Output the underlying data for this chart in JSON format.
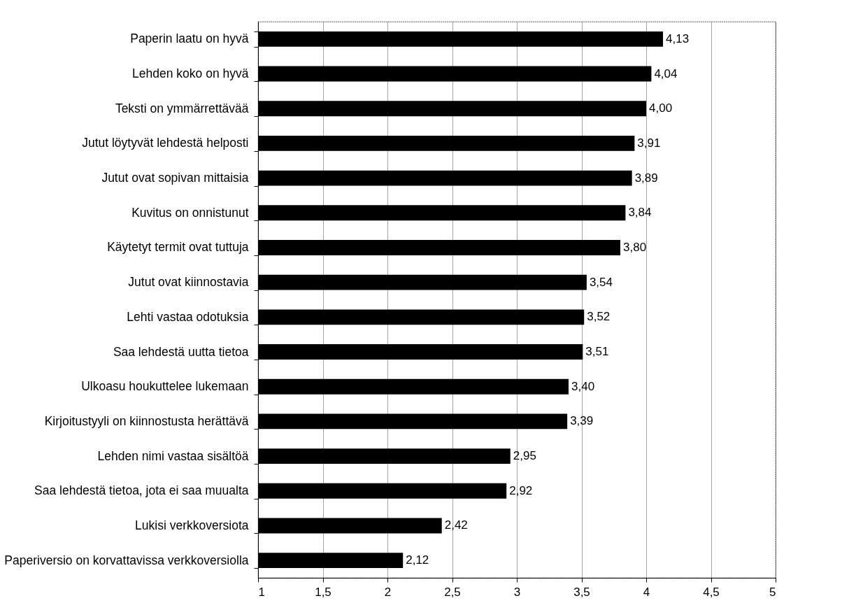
{
  "chart_data": {
    "type": "bar",
    "orientation": "horizontal",
    "categories": [
      "Paperin laatu on hyvä",
      "Lehden koko on hyvä",
      "Teksti on ymmärrettävää",
      "Jutut löytyvät lehdestä helposti",
      "Jutut ovat sopivan mittaisia",
      "Kuvitus on onnistunut",
      "Käytetyt termit ovat tuttuja",
      "Jutut ovat kiinnostavia",
      "Lehti vastaa odotuksia",
      "Saa lehdestä uutta tietoa",
      "Ulkoasu houkuttelee lukemaan",
      "Kirjoitustyyli on kiinnostusta herättävä",
      "Lehden nimi vastaa sisältöä",
      "Saa lehdestä tietoa, jota ei saa muualta",
      "Lukisi verkkoversiota",
      "Paperiversio on korvattavissa verkkoversiolla"
    ],
    "values": [
      4.13,
      4.04,
      4.0,
      3.91,
      3.89,
      3.84,
      3.8,
      3.54,
      3.52,
      3.51,
      3.4,
      3.39,
      2.95,
      2.92,
      2.42,
      2.12
    ],
    "value_labels": [
      "4,13",
      "4,04",
      "4,00",
      "3,91",
      "3,89",
      "3,84",
      "3,80",
      "3,54",
      "3,52",
      "3,51",
      "3,40",
      "3,39",
      "2,95",
      "2,92",
      "2,42",
      "2,12"
    ],
    "color": "#000000",
    "xlim": [
      1,
      5
    ],
    "xticks": [
      1,
      {
        "value": 1.5,
        "label": "1,5"
      },
      2,
      {
        "value": 2.5,
        "label": "2,5"
      },
      3,
      {
        "value": 3.5,
        "label": "3,5"
      },
      4,
      {
        "value": 4.5,
        "label": "4,5"
      },
      5
    ],
    "grid": "x"
  }
}
